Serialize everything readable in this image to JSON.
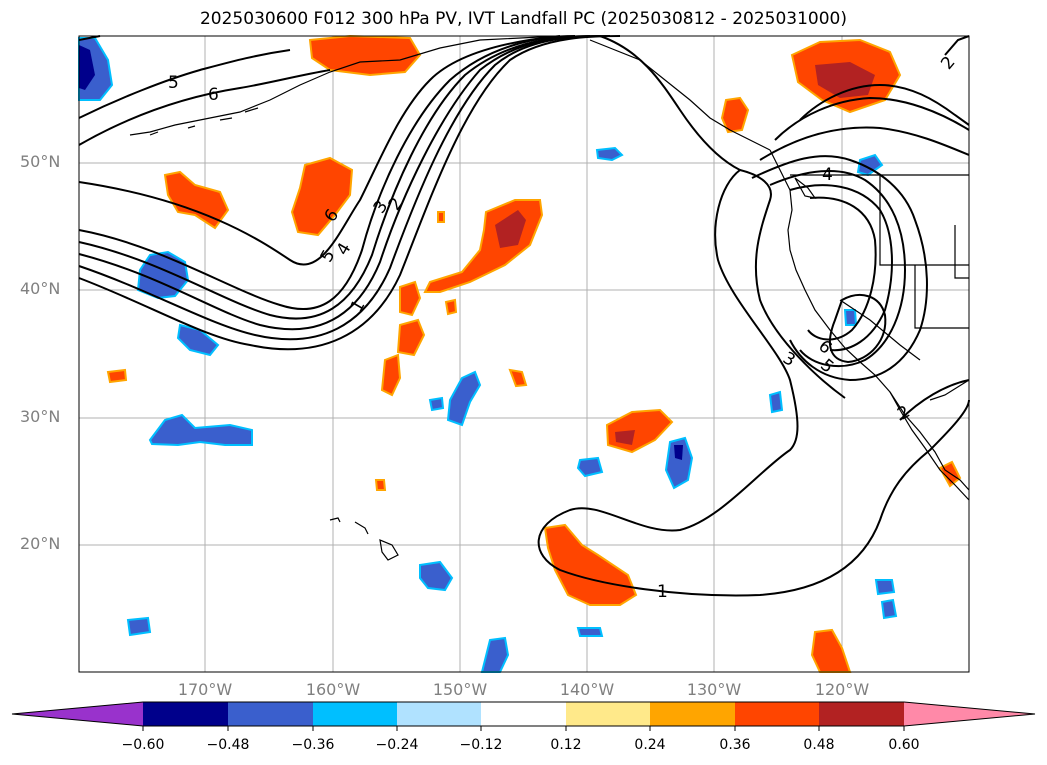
{
  "title": "2025030600 F012 300 hPa PV, IVT Landfall PC (2025030812 - 2025031000)",
  "map": {
    "lat_labels": [
      "50°N",
      "40°N",
      "30°N",
      "20°N"
    ],
    "lon_labels": [
      "170°W",
      "160°W",
      "150°W",
      "140°W",
      "130°W",
      "120°W"
    ],
    "contour_labels": [
      "5",
      "6",
      "6",
      "5",
      "4",
      "3",
      "2",
      "1",
      "4",
      "6",
      "5",
      "3",
      "2",
      "1",
      "2"
    ]
  },
  "colorbar": {
    "tick_labels": [
      "−0.60",
      "−0.48",
      "−0.36",
      "−0.24",
      "−0.12",
      "0.12",
      "0.24",
      "0.36",
      "0.48",
      "0.60"
    ],
    "colors": [
      "#9932cc",
      "#00008b",
      "#3a5fcd",
      "#00bfff",
      "#b0e2ff",
      "#ffffff",
      "#ffe98a",
      "#ffa500",
      "#ff4500",
      "#b22222",
      "#ff89a8"
    ]
  },
  "colors": {
    "positive_fill": "#ff4500",
    "positive_core": "#b22222",
    "positive_edge": "#ffa500",
    "negative_fill": "#3a5fcd",
    "negative_core": "#00008b",
    "negative_edge": "#00bfff",
    "contour": "#000000",
    "grid": "#b0b0b0"
  }
}
